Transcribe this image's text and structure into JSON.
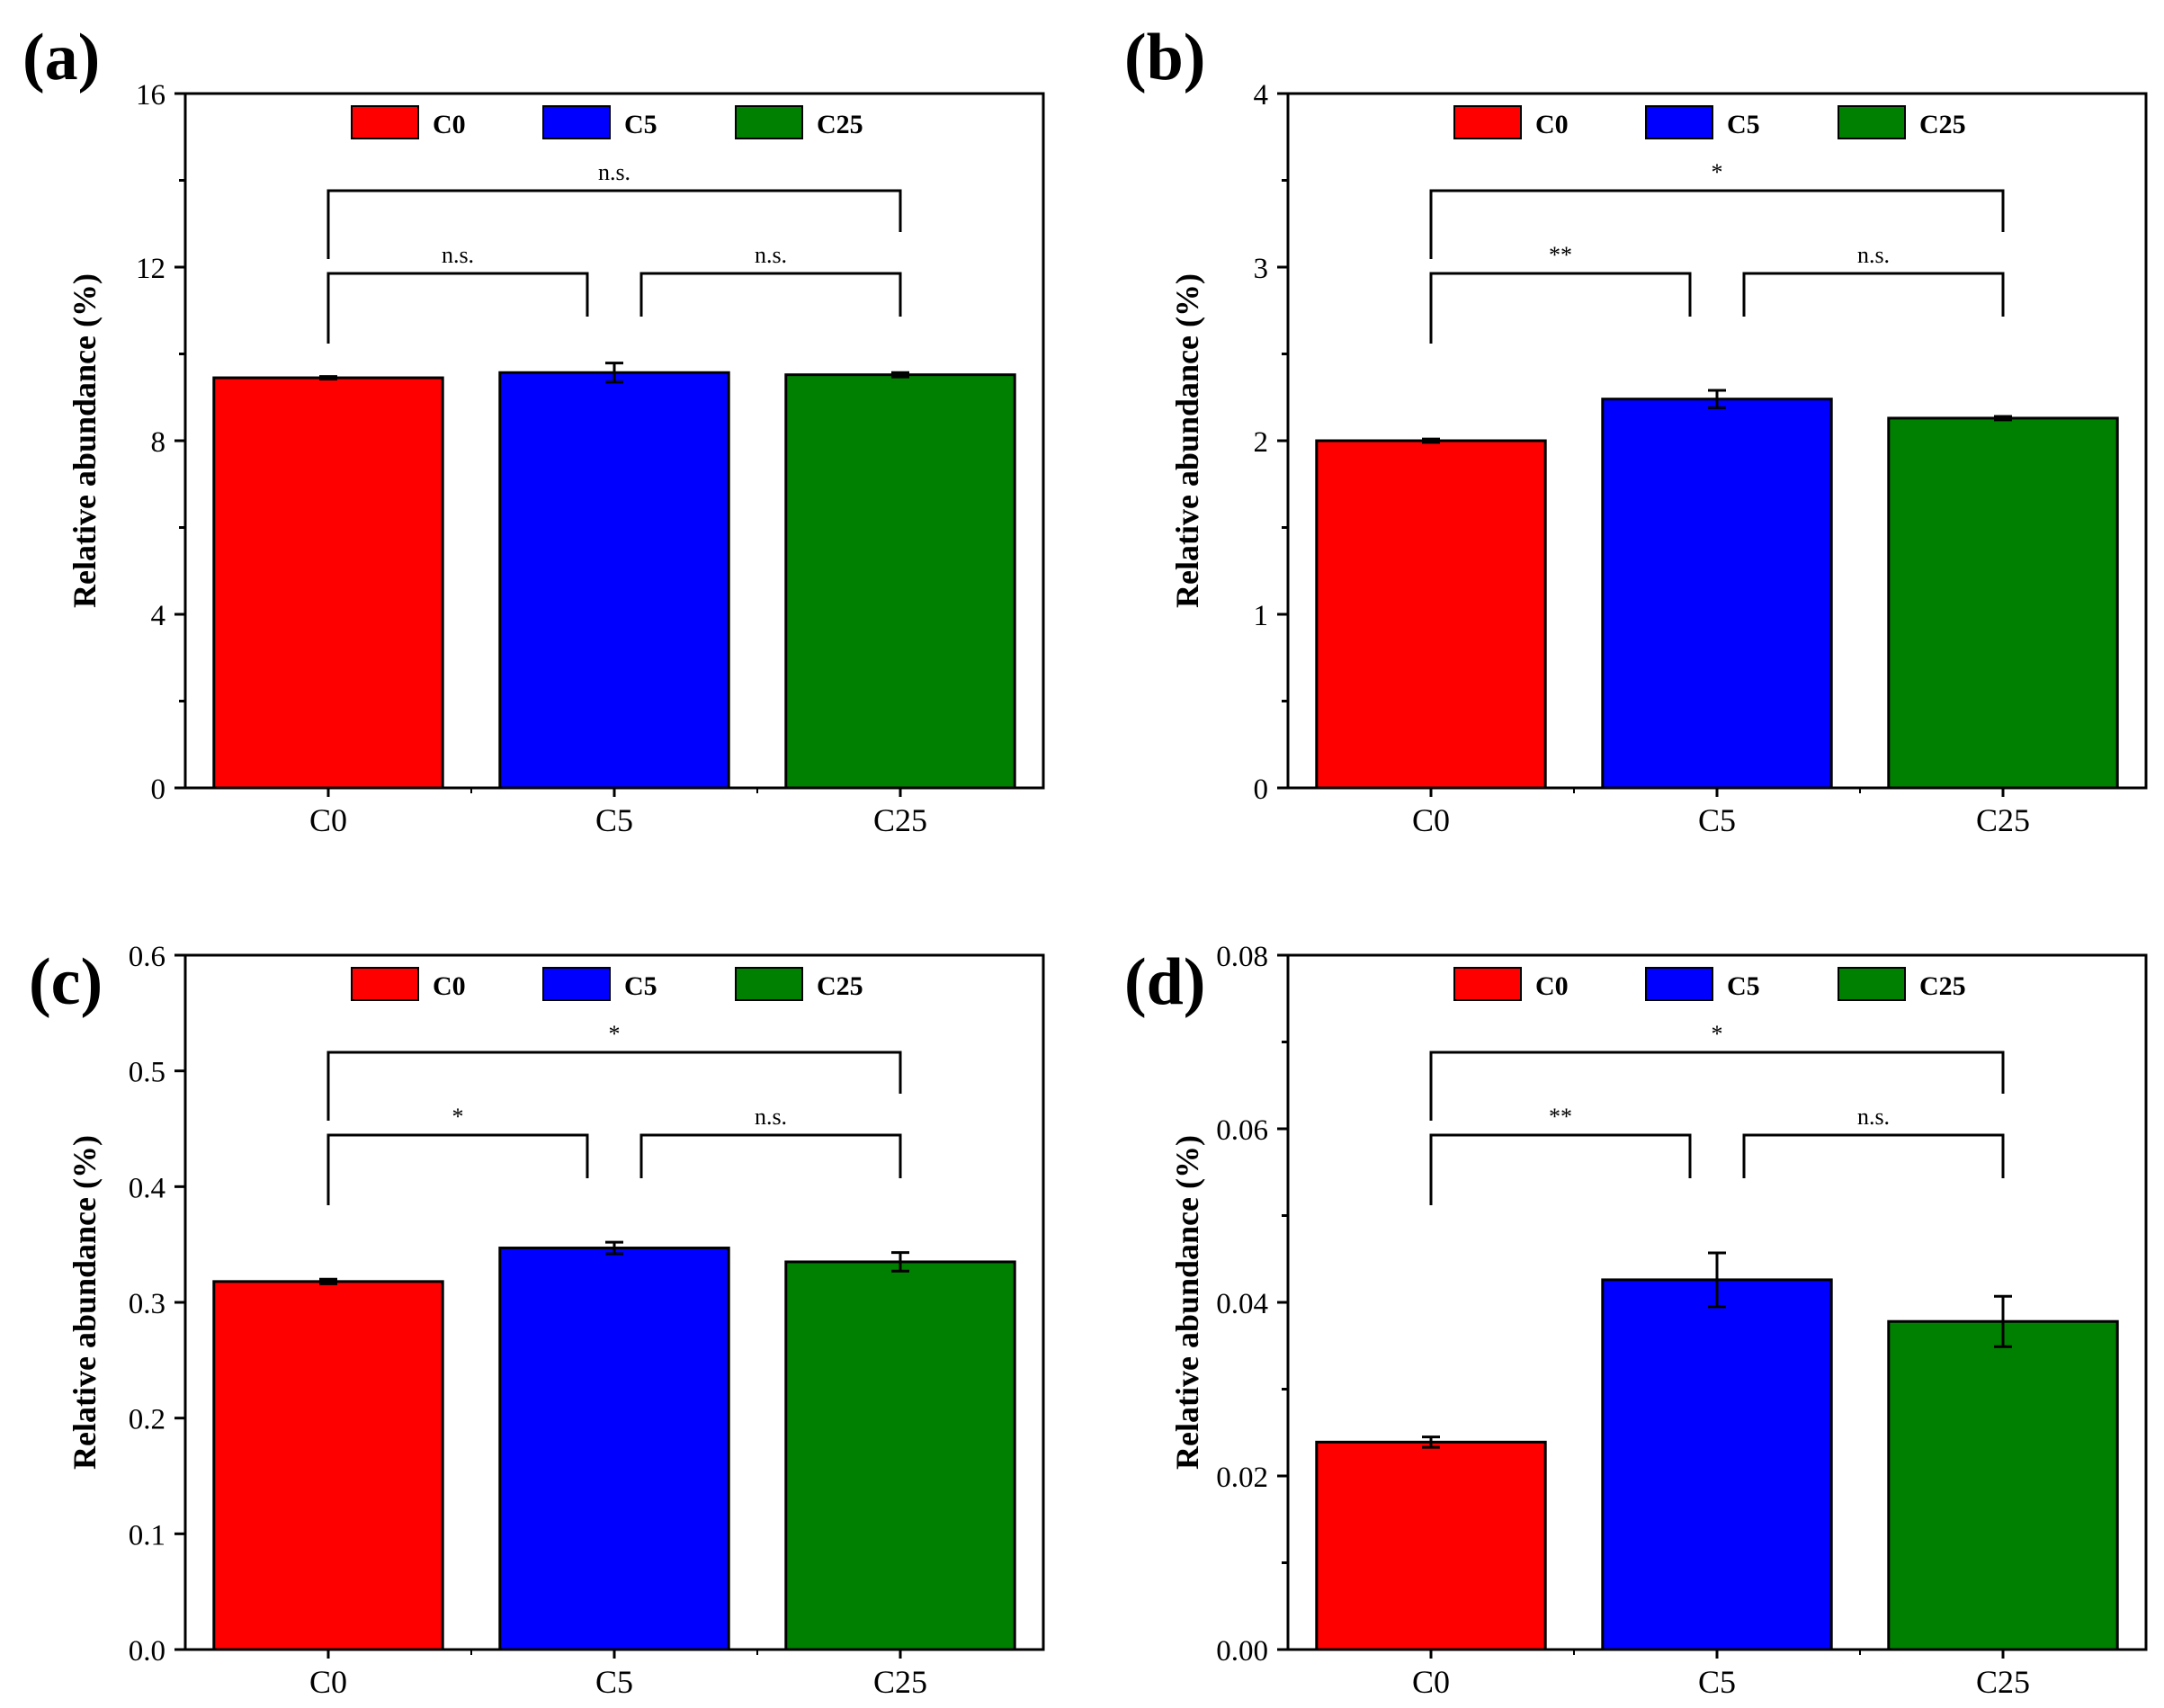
{
  "figure": {
    "legend": [
      {
        "label": "C0",
        "color": "#ff0000"
      },
      {
        "label": "C5",
        "color": "#0000ff"
      },
      {
        "label": "C25",
        "color": "#008000"
      }
    ]
  },
  "chart_data": [
    {
      "panel": "(a)",
      "type": "bar",
      "categories": [
        "C0",
        "C5",
        "C25"
      ],
      "values": [
        9.45,
        9.57,
        9.52
      ],
      "errors": [
        0.03,
        0.22,
        0.05
      ],
      "colors": [
        "#ff0000",
        "#0000ff",
        "#008000"
      ],
      "ylabel": "Relative abundance (%)",
      "ylim": [
        0,
        16
      ],
      "yticks": [
        0,
        4,
        8,
        12,
        16
      ],
      "ytick_labels": [
        "0",
        "4",
        "8",
        "12",
        "16"
      ],
      "minor_ticks": 1,
      "significance": [
        {
          "from": 0,
          "to": 1,
          "label": "n.s.",
          "level": 1
        },
        {
          "from": 1,
          "to": 2,
          "label": "n.s.",
          "level": 1
        },
        {
          "from": 0,
          "to": 2,
          "label": "n.s.",
          "level": 2
        }
      ],
      "legend": [
        "C0",
        "C5",
        "C25"
      ]
    },
    {
      "panel": "(b)",
      "type": "bar",
      "categories": [
        "C0",
        "C5",
        "C25"
      ],
      "values": [
        2.0,
        2.24,
        2.13
      ],
      "errors": [
        0.01,
        0.05,
        0.01
      ],
      "colors": [
        "#ff0000",
        "#0000ff",
        "#008000"
      ],
      "ylabel": "Relative abundance (%)",
      "ylim": [
        0,
        4
      ],
      "yticks": [
        0,
        1,
        2,
        3,
        4
      ],
      "ytick_labels": [
        "0",
        "1",
        "2",
        "3",
        "4"
      ],
      "minor_ticks": 1,
      "significance": [
        {
          "from": 0,
          "to": 1,
          "label": "**",
          "level": 1
        },
        {
          "from": 1,
          "to": 2,
          "label": "n.s.",
          "level": 1
        },
        {
          "from": 0,
          "to": 2,
          "label": "*",
          "level": 2
        }
      ],
      "legend": [
        "C0",
        "C5",
        "C25"
      ]
    },
    {
      "panel": "(c)",
      "type": "bar",
      "categories": [
        "C0",
        "C5",
        "C25"
      ],
      "values": [
        0.318,
        0.347,
        0.335
      ],
      "errors": [
        0.002,
        0.005,
        0.008
      ],
      "colors": [
        "#ff0000",
        "#0000ff",
        "#008000"
      ],
      "ylabel": "Relative abundance (%)",
      "ylim": [
        0,
        0.6
      ],
      "yticks": [
        0,
        0.1,
        0.2,
        0.3,
        0.4,
        0.5,
        0.6
      ],
      "ytick_labels": [
        "0.0",
        "0.1",
        "0.2",
        "0.3",
        "0.4",
        "0.5",
        "0.6"
      ],
      "minor_ticks": 0,
      "significance": [
        {
          "from": 0,
          "to": 1,
          "label": "*",
          "level": 1
        },
        {
          "from": 1,
          "to": 2,
          "label": "n.s.",
          "level": 1
        },
        {
          "from": 0,
          "to": 2,
          "label": "*",
          "level": 2
        }
      ],
      "legend": [
        "C0",
        "C5",
        "C25"
      ]
    },
    {
      "panel": "(d)",
      "type": "bar",
      "categories": [
        "C0",
        "C5",
        "C25"
      ],
      "values": [
        0.0239,
        0.0426,
        0.0378
      ],
      "errors": [
        0.0006,
        0.0031,
        0.0029
      ],
      "colors": [
        "#ff0000",
        "#0000ff",
        "#008000"
      ],
      "ylabel": "Relative abundance (%)",
      "ylim": [
        0,
        0.08
      ],
      "yticks": [
        0,
        0.02,
        0.04,
        0.06,
        0.08
      ],
      "ytick_labels": [
        "0.00",
        "0.02",
        "0.04",
        "0.06",
        "0.08"
      ],
      "minor_ticks": 1,
      "significance": [
        {
          "from": 0,
          "to": 1,
          "label": "**",
          "level": 1
        },
        {
          "from": 1,
          "to": 2,
          "label": "n.s.",
          "level": 1
        },
        {
          "from": 0,
          "to": 2,
          "label": "*",
          "level": 2
        }
      ],
      "legend": [
        "C0",
        "C5",
        "C25"
      ]
    }
  ]
}
